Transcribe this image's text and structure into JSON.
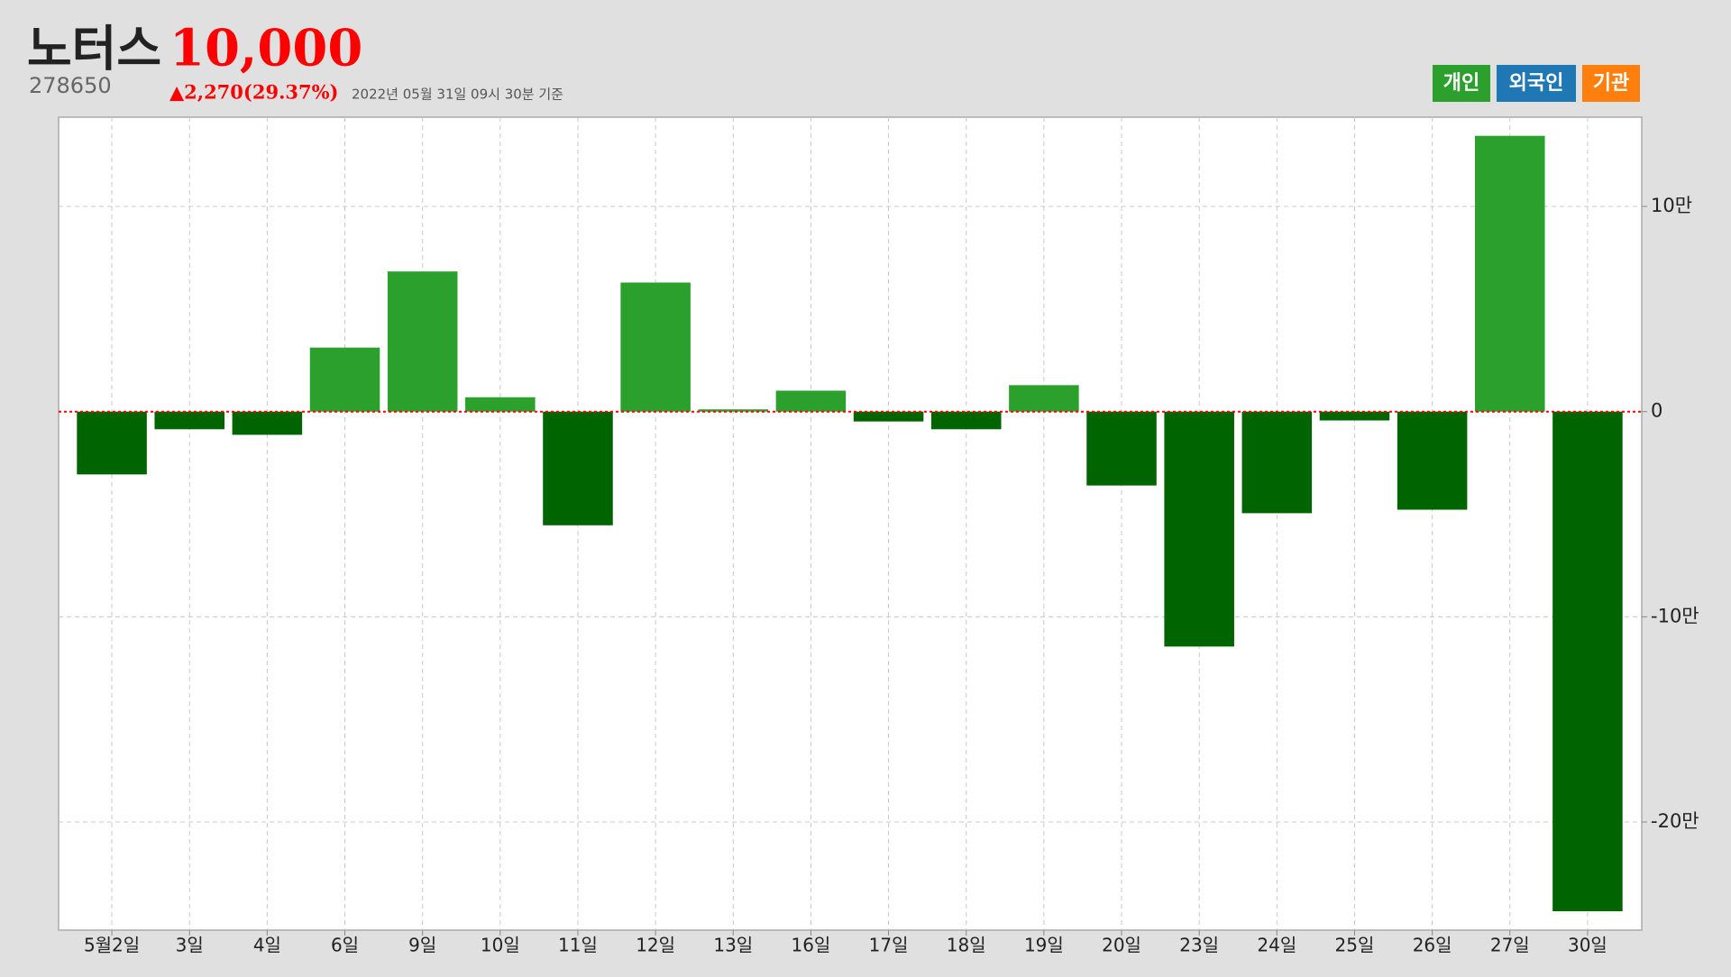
{
  "header": {
    "name": "노터스",
    "price": "10,000",
    "code": "278650",
    "change": "▲2,270(29.37%)",
    "timestamp": "2022년 05월 31일 09시 30분 기준"
  },
  "legend_buttons": [
    {
      "label": "개인",
      "color": "#2ca02c"
    },
    {
      "label": "외국인",
      "color": "#1f77b4"
    },
    {
      "label": "기관",
      "color": "#ff7f0e"
    }
  ],
  "chart_data": {
    "type": "bar",
    "categories": [
      "5월2일",
      "3일",
      "4일",
      "6일",
      "9일",
      "10일",
      "11일",
      "12일",
      "13일",
      "16일",
      "17일",
      "18일",
      "19일",
      "20일",
      "23일",
      "24일",
      "25일",
      "26일",
      "27일",
      "30일"
    ],
    "values": [
      -30600,
      -8600,
      -11300,
      31200,
      68300,
      7000,
      -55400,
      62900,
      1100,
      10200,
      -4800,
      -8600,
      12900,
      -36000,
      -114500,
      -49500,
      -4300,
      -47800,
      134400,
      -243500
    ],
    "positive_color": "#2ca02c",
    "negative_color": "#006400",
    "zero_line_color": "#ff0000",
    "ylim": [
      -252700,
      143500
    ],
    "yticks": [
      {
        "value": 100000,
        "label": "10만"
      },
      0,
      {
        "value": -100000,
        "label": "-10만"
      },
      {
        "value": -200000,
        "label": "-20만"
      }
    ],
    "grid": true
  }
}
